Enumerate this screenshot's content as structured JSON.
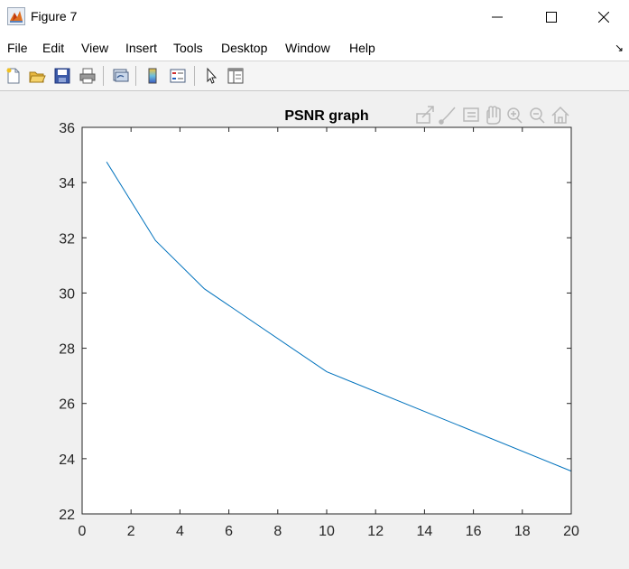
{
  "window": {
    "title": "Figure 7",
    "minimize_icon": "minimize-icon",
    "maximize_icon": "maximize-icon",
    "close_icon": "close-icon"
  },
  "menubar": {
    "items": [
      "File",
      "Edit",
      "View",
      "Insert",
      "Tools",
      "Desktop",
      "Window",
      "Help"
    ],
    "dock_glyph": "↘"
  },
  "toolbar": {
    "icons": [
      "new-figure-icon",
      "open-file-icon",
      "save-icon",
      "print-icon",
      "link-plot-icon",
      "insert-colorbar-icon",
      "insert-legend-icon",
      "edit-plot-icon",
      "property-inspector-icon"
    ]
  },
  "axes_toolbar": {
    "icons": [
      "export-icon",
      "brush-icon",
      "data-tips-icon",
      "pan-icon",
      "zoom-in-icon",
      "zoom-out-icon",
      "home-icon"
    ]
  },
  "colors": {
    "line": "#0072bd",
    "axes_bg": "#ffffff",
    "figure_bg": "#f0f0f0"
  },
  "chart_data": {
    "type": "line",
    "title": "PSNR graph",
    "xlabel": "",
    "ylabel": "",
    "xlim": [
      0,
      20
    ],
    "ylim": [
      22,
      36
    ],
    "xticks": [
      0,
      2,
      4,
      6,
      8,
      10,
      12,
      14,
      16,
      18,
      20
    ],
    "yticks": [
      22,
      24,
      26,
      28,
      30,
      32,
      34,
      36
    ],
    "grid": false,
    "series": [
      {
        "x": [
          1,
          3,
          5,
          10,
          20
        ],
        "y": [
          34.75,
          31.9,
          30.15,
          27.15,
          23.55
        ]
      }
    ]
  }
}
